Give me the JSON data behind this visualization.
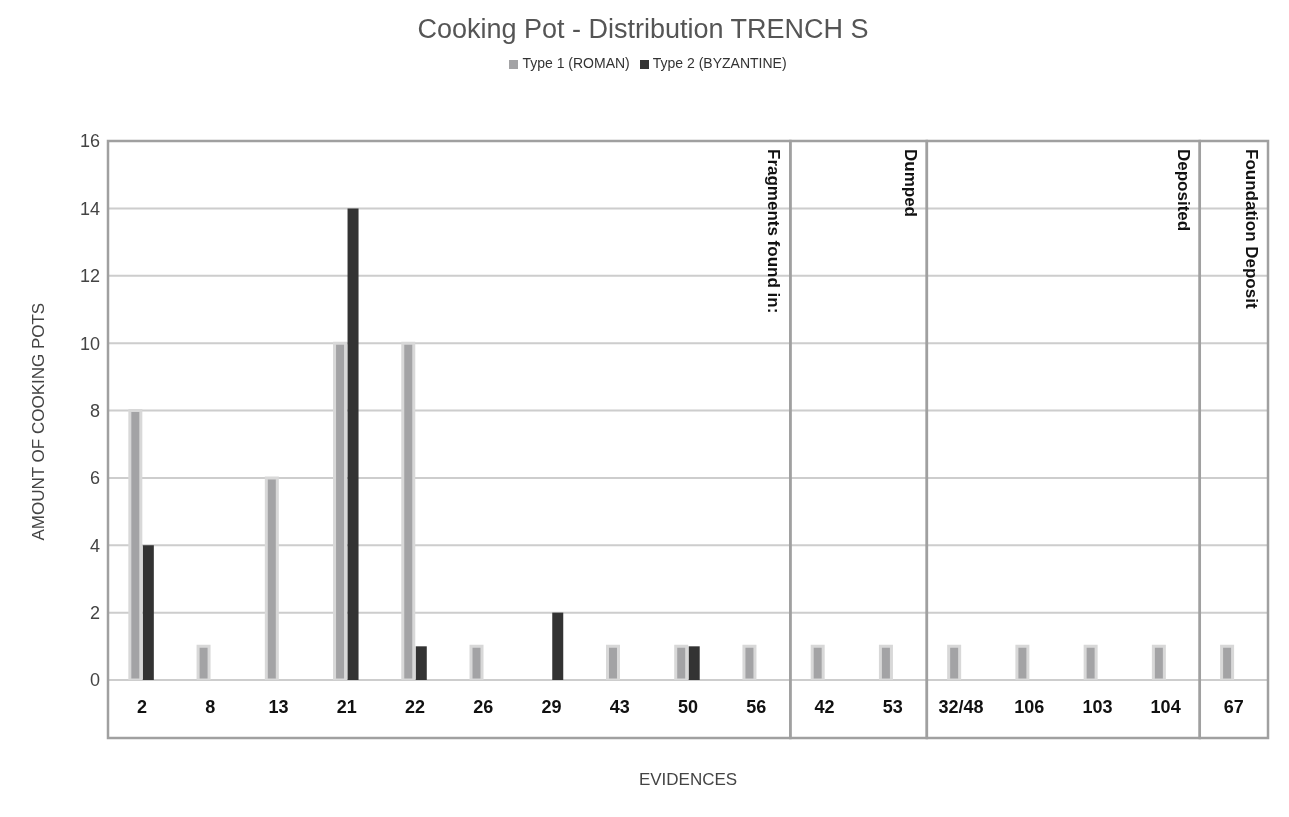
{
  "chart_data": {
    "type": "bar",
    "title": "Cooking Pot - Distribution TRENCH S",
    "xlabel": "EVIDENCES",
    "ylabel": "AMOUNT OF COOKING POTS",
    "categories": [
      "2",
      "8",
      "13",
      "21",
      "22",
      "26",
      "29",
      "43",
      "50",
      "56",
      "42",
      "53",
      "32/48",
      "106",
      "103",
      "104",
      "67"
    ],
    "series": [
      {
        "name": "Type 1 (ROMAN)",
        "color": "#a3a3a5",
        "values": [
          8,
          1,
          6,
          10,
          10,
          1,
          null,
          1,
          1,
          1,
          1,
          1,
          1,
          1,
          1,
          1,
          1
        ]
      },
      {
        "name": "Type 2 (BYZANTINE)",
        "color": "#333333",
        "values": [
          4,
          null,
          null,
          14,
          1,
          null,
          2,
          null,
          1,
          null,
          null,
          null,
          null,
          null,
          null,
          null,
          null
        ]
      }
    ],
    "ylim": [
      0,
      16
    ],
    "yticks": [
      0,
      2,
      4,
      6,
      8,
      10,
      12,
      14,
      16
    ],
    "grid": "y",
    "legend": "top",
    "bands": [
      {
        "axis": "x",
        "from": "2",
        "to": "56",
        "label": "Fragments found in:"
      },
      {
        "axis": "x",
        "from": "42",
        "to": "53",
        "label": "Dumped"
      },
      {
        "axis": "x",
        "from": "32/48",
        "to": "104",
        "label": "Deposited"
      },
      {
        "axis": "x",
        "from": "67",
        "to": "67",
        "label": "Foundation Deposit"
      }
    ]
  }
}
